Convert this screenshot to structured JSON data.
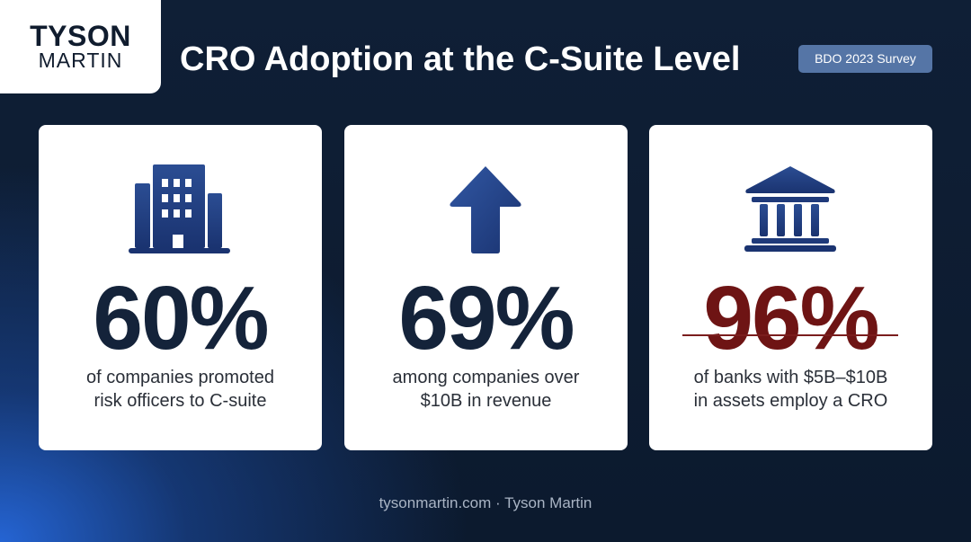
{
  "logo": {
    "line1": "TYSON",
    "line2": "MARTIN"
  },
  "header": {
    "title": "CRO Adoption at the C-Suite Level",
    "badge": "BDO 2023 Survey"
  },
  "cards": [
    {
      "icon": "office-building-icon",
      "value": "60%",
      "caption_line1": "of companies promoted",
      "caption_line2": "risk officers to C-suite",
      "value_color": "#14233a"
    },
    {
      "icon": "arrow-up-icon",
      "value": "69%",
      "caption_line1": "among companies over",
      "caption_line2": "$10B in revenue",
      "value_color": "#14233a"
    },
    {
      "icon": "bank-icon",
      "value": "96%",
      "caption_line1": "of banks with $5B–$10B",
      "caption_line2": "in assets employ a CRO",
      "value_color": "#6e1414"
    }
  ],
  "footer": {
    "text": "tysonmartin.com · Tyson Martin"
  },
  "colors": {
    "icon": "#1f3a7a",
    "accent": "#6e1414",
    "badge": "#5575a6"
  }
}
